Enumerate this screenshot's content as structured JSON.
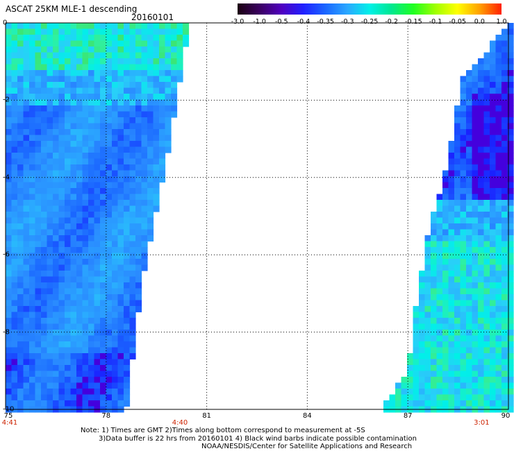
{
  "header": {
    "title": "ASCAT 25KM MLE-1 descending",
    "date": "20160101"
  },
  "colorbar": {
    "labels": [
      "-3.0",
      "-1.0",
      "-0.5",
      "-0.4",
      "-0.35",
      "-0.3",
      "-0.25",
      "-0.2",
      "-0.15",
      "-0.1",
      "-0.05",
      "0.0",
      "1.0"
    ],
    "colors": [
      "#1a0010",
      "#3a0060",
      "#5000c0",
      "#2020ff",
      "#1a66ff",
      "#2aa8ff",
      "#00f0e8",
      "#00e890",
      "#20ff20",
      "#a0ff00",
      "#ffff00",
      "#ffa000",
      "#ff2000"
    ]
  },
  "axes": {
    "y_ticks": [
      "0",
      "-2",
      "-4",
      "-6",
      "-8",
      "-10"
    ],
    "x_ticks": [
      "75",
      "78",
      "81",
      "84",
      "87",
      "90"
    ],
    "time_labels": [
      {
        "lon": "75",
        "text": "4:41"
      },
      {
        "lon": "80.2",
        "text": "4:40"
      },
      {
        "lon": "89.2",
        "text": "3:01"
      }
    ]
  },
  "notes": {
    "line1": "Note: 1) Times are GMT 2)Times along bottom correspond to measurement at -5S",
    "line2": "3)Data buffer is 22 hrs from 20160101 4) Black wind barbs indicate possible contamination",
    "line3": "NOAA/NESDIS/Center for Satellite Applications and Research"
  },
  "map_data": {
    "lon_range": [
      75,
      90
    ],
    "lat_range": [
      -10,
      0
    ],
    "swaths": [
      {
        "name": "west",
        "edge": [
          [
            0,
            80.5
          ],
          [
            -1.5,
            80.2
          ],
          [
            -4.5,
            79.6
          ],
          [
            -6.5,
            79.1
          ],
          [
            -8,
            78.9
          ],
          [
            -10,
            78.6
          ]
        ]
      },
      {
        "name": "east",
        "edge": [
          [
            0,
            90
          ],
          [
            -1.5,
            88.6
          ],
          [
            -3.5,
            88.2
          ],
          [
            -5.5,
            87.6
          ],
          [
            -7.5,
            87.2
          ],
          [
            -9,
            87
          ],
          [
            -10,
            86.2
          ]
        ]
      }
    ]
  }
}
